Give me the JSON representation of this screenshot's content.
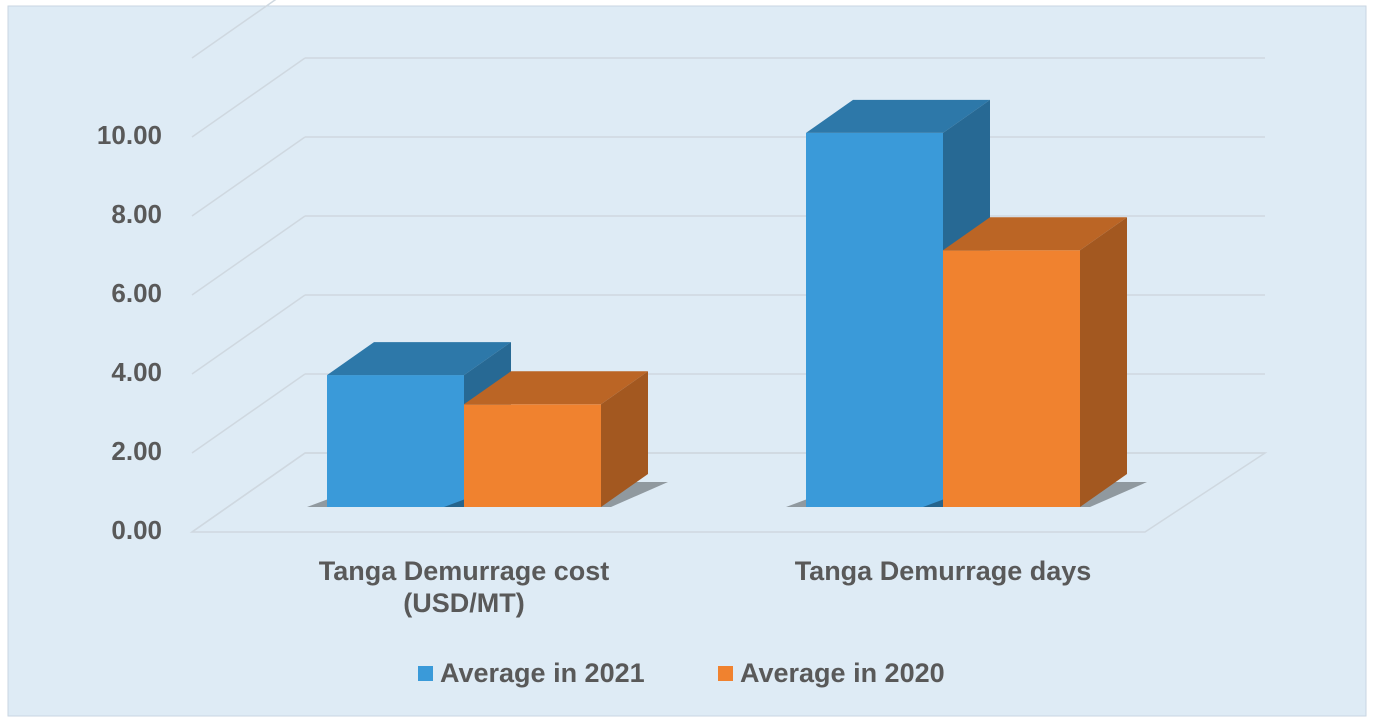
{
  "chart_data": {
    "type": "bar3d",
    "categories": [
      "Tanga Demurrage cost (USD/MT)",
      "Tanga Demurrage days"
    ],
    "series": [
      {
        "name": "Average in 2021",
        "color": "#3a9ad9",
        "values": [
          3.34,
          9.47
        ]
      },
      {
        "name": "Average in 2020",
        "color": "#f0822f",
        "values": [
          2.6,
          6.5
        ]
      }
    ],
    "ylim": [
      0,
      12
    ],
    "yticks": [
      {
        "value": 0,
        "label": "0.00"
      },
      {
        "value": 2,
        "label": "2.00"
      },
      {
        "value": 4,
        "label": "4.00"
      },
      {
        "value": 6,
        "label": "6.00"
      },
      {
        "value": 8,
        "label": "8.00"
      },
      {
        "value": 10,
        "label": "10.00"
      }
    ],
    "grid": true,
    "legend": "bottom"
  }
}
